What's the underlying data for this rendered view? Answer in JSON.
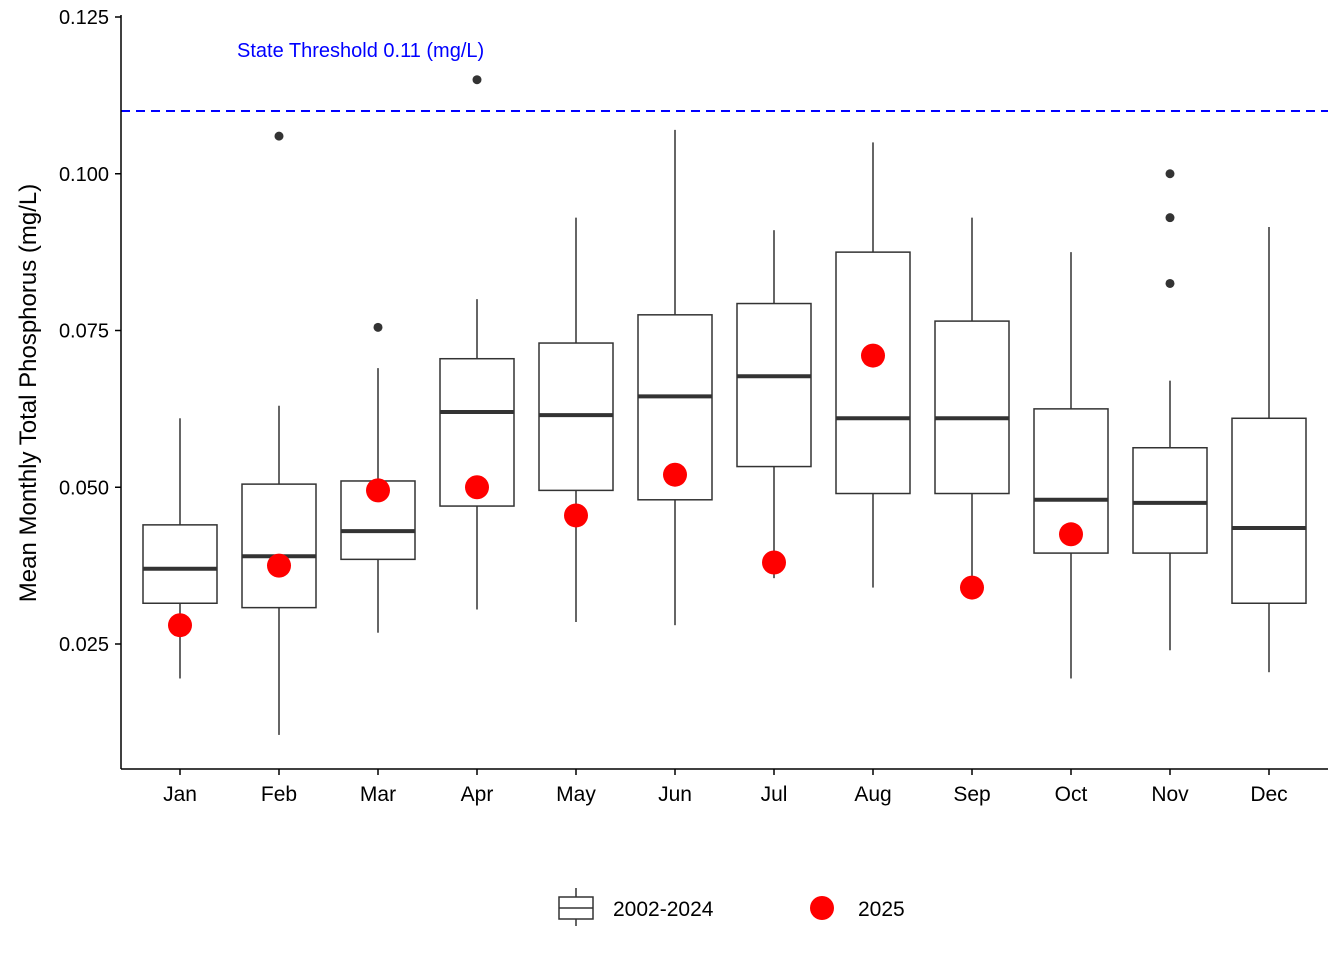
{
  "chart_data": {
    "type": "box",
    "ylabel": "Mean Monthly Total Phosphorus (mg/L)",
    "xlabel": "",
    "ylim": [
      0.005,
      0.125
    ],
    "yticks": [
      0.025,
      0.05,
      0.075,
      0.1,
      0.125
    ],
    "ytick_labels": [
      "0.025",
      "0.050",
      "0.075",
      "0.100",
      "0.125"
    ],
    "grid": false,
    "legend_position": "bottom",
    "categories": [
      "Jan",
      "Feb",
      "Mar",
      "Apr",
      "May",
      "Jun",
      "Jul",
      "Aug",
      "Sep",
      "Oct",
      "Nov",
      "Dec"
    ],
    "threshold": {
      "value": 0.11,
      "label": "State Threshold 0.11 (mg/L)",
      "color": "#0000ff"
    },
    "series": [
      {
        "name": "2002-2024",
        "kind": "boxplot",
        "color": "#333333",
        "boxes": [
          {
            "whisker_low": 0.0195,
            "q1": 0.0315,
            "median": 0.037,
            "q3": 0.044,
            "whisker_high": 0.061,
            "outliers": []
          },
          {
            "whisker_low": 0.0105,
            "q1": 0.0308,
            "median": 0.039,
            "q3": 0.0505,
            "whisker_high": 0.063,
            "outliers": [
              0.106
            ]
          },
          {
            "whisker_low": 0.0268,
            "q1": 0.0385,
            "median": 0.043,
            "q3": 0.051,
            "whisker_high": 0.069,
            "outliers": [
              0.0755
            ]
          },
          {
            "whisker_low": 0.0305,
            "q1": 0.047,
            "median": 0.062,
            "q3": 0.0705,
            "whisker_high": 0.08,
            "outliers": [
              0.115
            ]
          },
          {
            "whisker_low": 0.0285,
            "q1": 0.0495,
            "median": 0.0615,
            "q3": 0.073,
            "whisker_high": 0.093,
            "outliers": []
          },
          {
            "whisker_low": 0.028,
            "q1": 0.048,
            "median": 0.0645,
            "q3": 0.0775,
            "whisker_high": 0.107,
            "outliers": []
          },
          {
            "whisker_low": 0.0355,
            "q1": 0.0533,
            "median": 0.0677,
            "q3": 0.0793,
            "whisker_high": 0.091,
            "outliers": []
          },
          {
            "whisker_low": 0.034,
            "q1": 0.049,
            "median": 0.061,
            "q3": 0.0875,
            "whisker_high": 0.105,
            "outliers": []
          },
          {
            "whisker_low": 0.0345,
            "q1": 0.049,
            "median": 0.061,
            "q3": 0.0765,
            "whisker_high": 0.093,
            "outliers": []
          },
          {
            "whisker_low": 0.0195,
            "q1": 0.0395,
            "median": 0.048,
            "q3": 0.0625,
            "whisker_high": 0.0875,
            "outliers": []
          },
          {
            "whisker_low": 0.024,
            "q1": 0.0395,
            "median": 0.0475,
            "q3": 0.0563,
            "whisker_high": 0.067,
            "outliers": [
              0.1,
              0.093,
              0.0825
            ]
          },
          {
            "whisker_low": 0.0205,
            "q1": 0.0315,
            "median": 0.0435,
            "q3": 0.061,
            "whisker_high": 0.0915,
            "outliers": []
          }
        ]
      },
      {
        "name": "2025",
        "kind": "points",
        "color": "#ff0000",
        "values": [
          0.028,
          0.0375,
          0.0495,
          0.05,
          0.0455,
          0.052,
          0.038,
          0.071,
          0.034,
          0.0425,
          null,
          null
        ]
      }
    ]
  }
}
